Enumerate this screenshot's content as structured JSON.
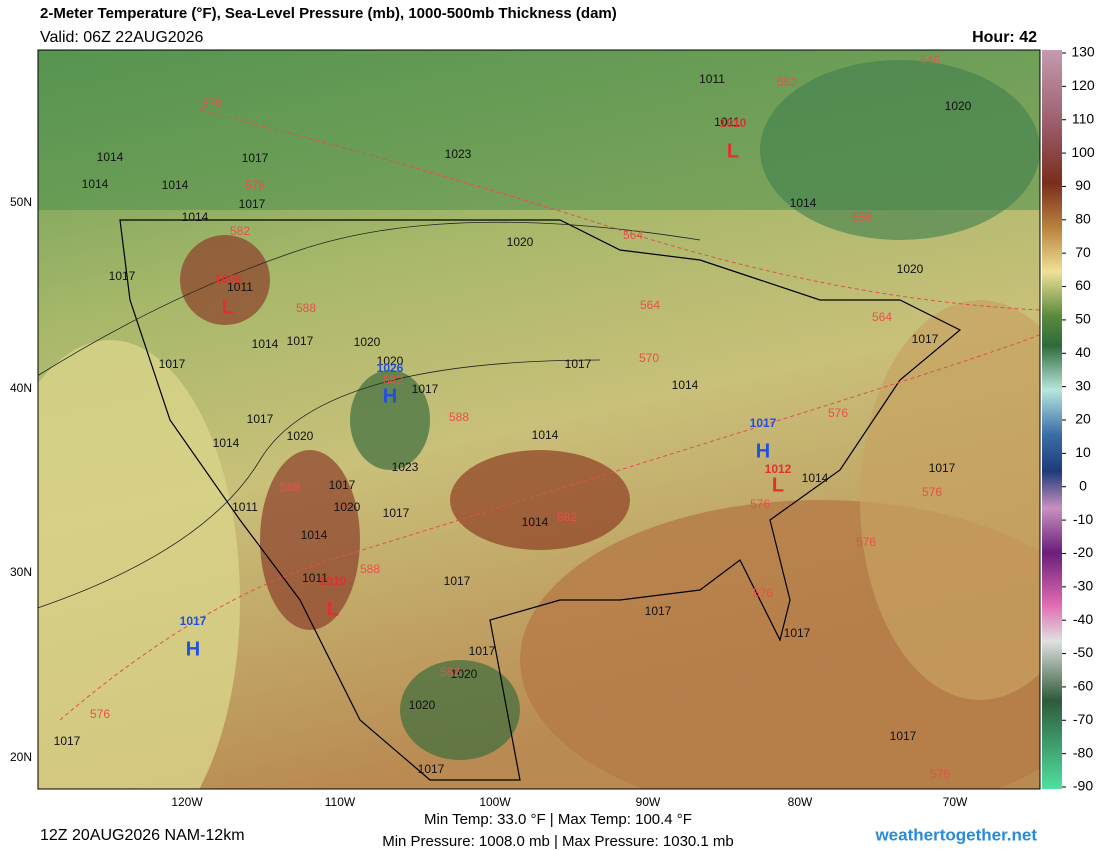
{
  "header": {
    "title": "2-Meter Temperature (°F), Sea-Level Pressure (mb), 1000-500mb Thickness (dam)",
    "valid": "Valid: 06Z 22AUG2026",
    "hour": "Hour: 42"
  },
  "colorbar": {
    "range": [
      -90,
      130
    ],
    "ticks": [
      130,
      120,
      110,
      100,
      90,
      80,
      70,
      60,
      50,
      40,
      30,
      20,
      10,
      0,
      -10,
      -20,
      -30,
      -40,
      -50,
      -60,
      -70,
      -80,
      -90
    ]
  },
  "lon_labels": [
    "120W",
    "110W",
    "100W",
    "90W",
    "80W",
    "70W"
  ],
  "lat_labels": [
    "50N",
    "40N",
    "30N",
    "20N"
  ],
  "footer": {
    "run": "12Z 20AUG2026 NAM-12km",
    "temps": "Min Temp:  33.0 °F | Max Temp: 100.4 °F",
    "pressures": "Min Pressure: 1008.0 mb | Max Pressure: 1030.1 mb",
    "site": "weathertogether.net"
  },
  "centers": [
    {
      "kind": "H",
      "value": "1017"
    },
    {
      "kind": "H",
      "value": "1026"
    },
    {
      "kind": "L",
      "value": "1008"
    },
    {
      "kind": "L",
      "value": "1010"
    },
    {
      "kind": "H",
      "value": "1017"
    },
    {
      "kind": "L",
      "value": "1012"
    },
    {
      "kind": "L",
      "value": "1010"
    }
  ],
  "isobar_labels": [
    "1011",
    "1011",
    "1020",
    "1023",
    "1014",
    "1017",
    "1014",
    "1014",
    "1017",
    "1014",
    "1014",
    "1020",
    "1017",
    "1020",
    "1011",
    "1014",
    "1017",
    "1020",
    "1020",
    "1017",
    "1017",
    "1017",
    "1017",
    "1014",
    "1017",
    "1014",
    "1020",
    "1014",
    "1023",
    "1014",
    "1017",
    "1017",
    "1020",
    "1017",
    "1011",
    "1014",
    "1014",
    "1011",
    "1017",
    "1017",
    "1017",
    "1017",
    "1020",
    "1020",
    "1017",
    "1017",
    "1017"
  ],
  "thickness_labels": [
    "570",
    "576",
    "582",
    "588",
    "552",
    "546",
    "558",
    "564",
    "564",
    "564",
    "570",
    "588",
    "576",
    "582",
    "588",
    "588",
    "576",
    "582",
    "576",
    "576",
    "576",
    "582",
    "576",
    "576"
  ]
}
